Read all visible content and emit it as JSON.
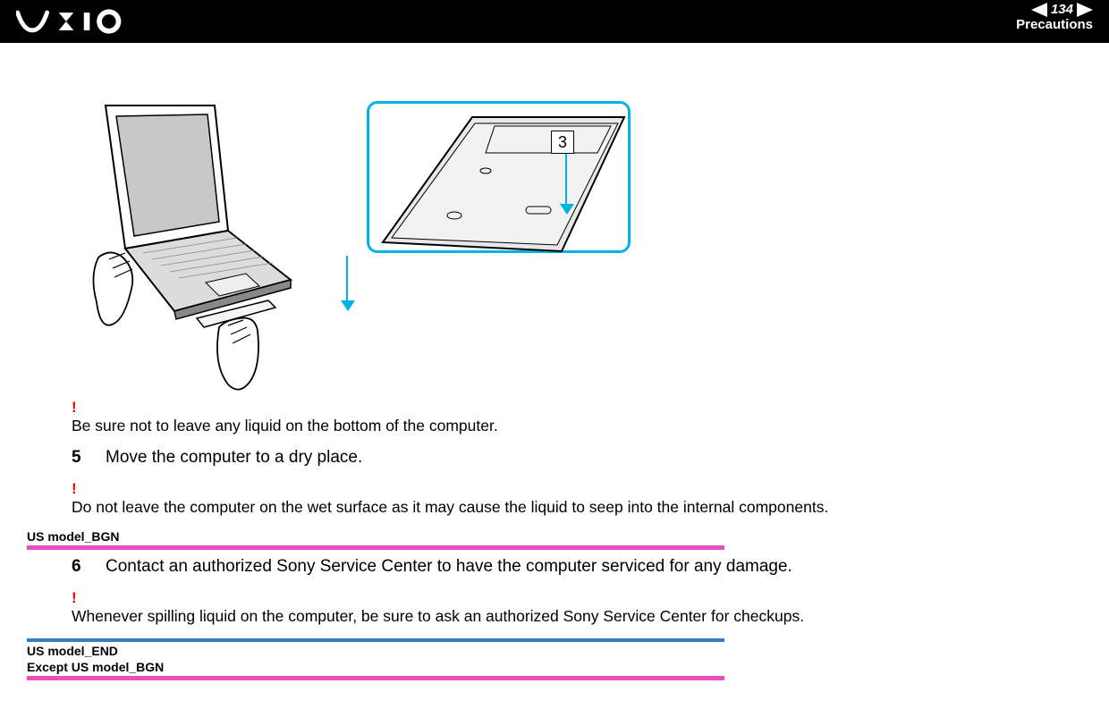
{
  "header": {
    "page_number": "134",
    "section": "Precautions"
  },
  "diagram": {
    "callout_number": "3",
    "callout_border_color": "#00b3e6",
    "arrow_color": "#00b3e6"
  },
  "items": [
    {
      "type": "bang"
    },
    {
      "type": "note",
      "text": "Be sure not to leave any liquid on the bottom of the computer."
    },
    {
      "type": "step",
      "num": "5",
      "text": "Move the computer to a dry place."
    },
    {
      "type": "bang"
    },
    {
      "type": "note",
      "text": "Do not leave the computer on the wet surface as it may cause the liquid to seep into the internal components."
    },
    {
      "type": "marker_start",
      "label": "US model_BGN"
    },
    {
      "type": "step",
      "num": "6",
      "text": "Contact an authorized Sony Service Center to have the computer serviced for any damage."
    },
    {
      "type": "bang"
    },
    {
      "type": "note",
      "text": "Whenever spilling liquid on the computer, be sure to ask an authorized Sony Service Center for checkups."
    },
    {
      "type": "marker_end",
      "labels": [
        "US model_END",
        "Except US model_BGN"
      ]
    }
  ],
  "colors": {
    "pink": "#ea4fc0",
    "blue": "#3b7bbf",
    "bang": "#ff0000",
    "header_bg": "#000000"
  }
}
